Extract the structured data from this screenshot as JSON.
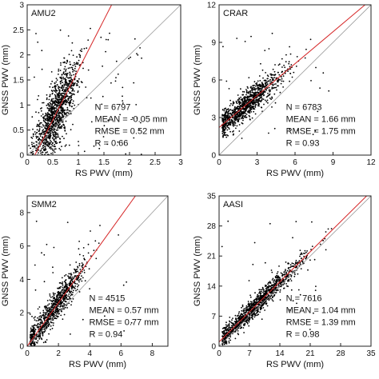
{
  "chart_data": [
    {
      "type": "scatter",
      "station": "AMU2",
      "xlabel": "RS PWV (mm)",
      "ylabel": "GNSS PWV (mm)",
      "xlim": [
        0,
        3
      ],
      "ylim": [
        0,
        3
      ],
      "xticks": [
        "0",
        "0.5",
        "1",
        "1.5",
        "2",
        "2.5",
        "3"
      ],
      "yticks": [
        "0",
        "0.5",
        "1",
        "1.5",
        "2",
        "2.5",
        "3"
      ],
      "grid": false,
      "reference_line": "1:1",
      "fit_line": {
        "slope": 2.0,
        "intercept": -0.3
      },
      "point_cloud": {
        "x_center": 0.55,
        "x_spread": 0.22,
        "y_noise": 0.32,
        "outlier_share": 0.08
      },
      "stats": [
        "N = 6797",
        "MEAN = -0.05 mm",
        "RMSE = 0.52 mm",
        "R = 0.66"
      ]
    },
    {
      "type": "scatter",
      "station": "CRAR",
      "xlabel": "RS PWV (mm)",
      "ylabel": "GNSS PWV (mm)",
      "xlim": [
        0,
        12
      ],
      "ylim": [
        0,
        12
      ],
      "xticks": [
        "0",
        "3",
        "6",
        "9",
        "12"
      ],
      "yticks": [
        "0",
        "3",
        "6",
        "9",
        "12"
      ],
      "grid": false,
      "reference_line": "1:1",
      "fit_line": {
        "slope": 0.85,
        "intercept": 2.2
      },
      "point_cloud": {
        "x_center": 2.2,
        "x_spread": 1.4,
        "y_noise": 0.55,
        "outlier_share": 0.03
      },
      "stats": [
        "N = 6783",
        "MEAN = 1.66 mm",
        "RMSE = 1.75 mm",
        "R = 0.93"
      ]
    },
    {
      "type": "scatter",
      "station": "SMM2",
      "xlabel": "RS PWV (mm)",
      "ylabel": "GNSS PWV (mm)",
      "xlim": [
        0,
        9
      ],
      "ylim": [
        0,
        9
      ],
      "xticks": [
        "0",
        "2",
        "4",
        "6",
        "8"
      ],
      "yticks": [
        "0",
        "2",
        "4",
        "6",
        "8"
      ],
      "grid": false,
      "reference_line": "1:1",
      "fit_line": {
        "slope": 1.3,
        "intercept": 0.0
      },
      "point_cloud": {
        "x_center": 1.6,
        "x_spread": 1.1,
        "y_noise": 0.45,
        "outlier_share": 0.03
      },
      "stats": [
        "N = 4515",
        "MEAN = 0.57 mm",
        "RMSE = 0.77 mm",
        "R = 0.94"
      ]
    },
    {
      "type": "scatter",
      "station": "AASI",
      "xlabel": "RS PWV (mm)",
      "ylabel": "GNSS PWV (mm)",
      "xlim": [
        0,
        35
      ],
      "ylim": [
        0,
        35
      ],
      "xticks": [
        "0",
        "7",
        "14",
        "21",
        "28",
        "35"
      ],
      "yticks": [
        "0",
        "7",
        "14",
        "21",
        "28",
        "35"
      ],
      "grid": false,
      "reference_line": "1:1",
      "fit_line": {
        "slope": 1.0,
        "intercept": 1.0
      },
      "point_cloud": {
        "x_center": 8.5,
        "x_spread": 5.5,
        "y_noise": 1.2,
        "outlier_share": 0.02
      },
      "stats": [
        "N = 7616",
        "MEAN = 1.04 mm",
        "RMSE = 1.39 mm",
        "R = 0.98"
      ]
    }
  ],
  "colors": {
    "points": "#000000",
    "fit_line": "#d62728",
    "reference_line": "#9a9a9a",
    "frame": "#222222"
  }
}
